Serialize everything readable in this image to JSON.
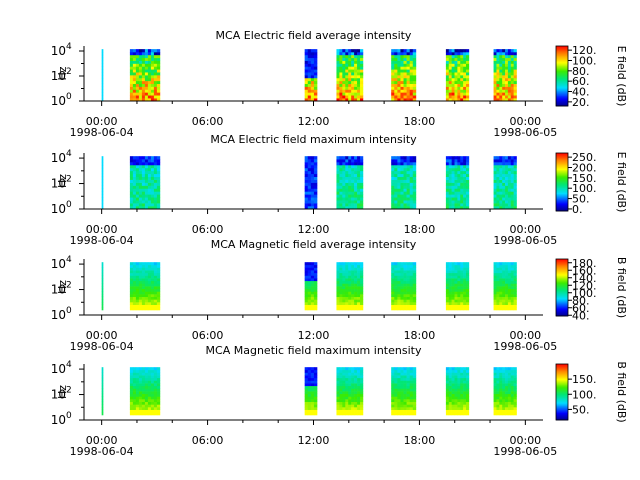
{
  "chart_data": [
    {
      "type": "heatmap",
      "title": "MCA  Electric field average intensity",
      "ylabel": "Hz",
      "colorbar_label": "E field (dB)",
      "colorbar_range": [
        12,
        128
      ],
      "colorbar_ticks": [
        120,
        100,
        80,
        60,
        40,
        20
      ],
      "colorbar_tick_labels": [
        "120.",
        "100.",
        "80.",
        "60.",
        "40.",
        "20."
      ],
      "x_tick_labels": [
        "00:00",
        "06:00",
        "12:00",
        "18:00",
        "00:00"
      ],
      "x_date_labels": [
        "1998-06-04",
        "1998-06-05"
      ],
      "y_exponents": [
        "0",
        "2",
        "4"
      ],
      "y_range_log10": [
        0,
        4.4
      ],
      "x_range_hours": [
        -1,
        25
      ],
      "segments_hours": [
        [
          0,
          0.08
        ],
        [
          1.6,
          3.3
        ],
        [
          11.5,
          12.2
        ],
        [
          13.3,
          14.8
        ],
        [
          16.4,
          17.8
        ],
        [
          19.5,
          20.8
        ],
        [
          22.2,
          23.5
        ]
      ],
      "palette": "rainbow"
    },
    {
      "type": "heatmap",
      "title": "MCA  Electric field maximum intensity",
      "ylabel": "Hz",
      "colorbar_label": "E field (dB)",
      "colorbar_range": [
        -10,
        270
      ],
      "colorbar_ticks": [
        250,
        200,
        150,
        100,
        50,
        0
      ],
      "colorbar_tick_labels": [
        "250.",
        "200.",
        "150.",
        "100.",
        "50.",
        "0."
      ],
      "x_tick_labels": [
        "00:00",
        "06:00",
        "12:00",
        "18:00",
        "00:00"
      ],
      "x_date_labels": [
        "1998-06-04",
        "1998-06-05"
      ],
      "y_exponents": [
        "0",
        "2",
        "4"
      ],
      "y_range_log10": [
        0,
        4.4
      ],
      "x_range_hours": [
        -1,
        25
      ],
      "segments_hours": [
        [
          0,
          0.08
        ],
        [
          1.6,
          3.3
        ],
        [
          11.5,
          12.2
        ],
        [
          13.3,
          14.8
        ],
        [
          16.4,
          17.8
        ],
        [
          19.5,
          20.8
        ],
        [
          22.2,
          23.5
        ]
      ],
      "palette": "rainbow"
    },
    {
      "type": "heatmap",
      "title": "MCA  Magnetic field average intensity",
      "ylabel": "Hz",
      "colorbar_label": "B field (dB)",
      "colorbar_range": [
        38,
        190
      ],
      "colorbar_ticks": [
        180,
        160,
        140,
        120,
        100,
        80,
        60,
        40
      ],
      "colorbar_tick_labels": [
        "180.",
        "160.",
        "140.",
        "120.",
        "100.",
        "80.",
        "60.",
        "40."
      ],
      "x_tick_labels": [
        "00:00",
        "06:00",
        "12:00",
        "18:00",
        "00:00"
      ],
      "x_date_labels": [
        "1998-06-04",
        "1998-06-05"
      ],
      "y_exponents": [
        "0",
        "2",
        "4"
      ],
      "y_range_log10": [
        0,
        4.4
      ],
      "x_range_hours": [
        -1,
        25
      ],
      "segments_hours": [
        [
          0,
          0.08
        ],
        [
          1.6,
          3.3
        ],
        [
          11.5,
          12.2
        ],
        [
          13.3,
          14.8
        ],
        [
          16.4,
          17.8
        ],
        [
          19.5,
          20.8
        ],
        [
          22.2,
          23.5
        ]
      ],
      "palette": "rainbow"
    },
    {
      "type": "heatmap",
      "title": "MCA  Magnetic field maximum intensity",
      "ylabel": "Hz",
      "colorbar_label": "B field (dB)",
      "colorbar_range": [
        15,
        200
      ],
      "colorbar_ticks": [
        150,
        100,
        50
      ],
      "colorbar_tick_labels": [
        "150.",
        "100.",
        "50."
      ],
      "x_tick_labels": [
        "00:00",
        "06:00",
        "12:00",
        "18:00",
        "00:00"
      ],
      "x_date_labels": [
        "1998-06-04",
        "1998-06-05"
      ],
      "y_exponents": [
        "0",
        "2",
        "4"
      ],
      "y_range_log10": [
        0,
        4.4
      ],
      "x_range_hours": [
        -1,
        25
      ],
      "segments_hours": [
        [
          0,
          0.08
        ],
        [
          1.6,
          3.3
        ],
        [
          11.5,
          12.2
        ],
        [
          13.3,
          14.8
        ],
        [
          16.4,
          17.8
        ],
        [
          19.5,
          20.8
        ],
        [
          22.2,
          23.5
        ]
      ],
      "palette": "rainbow"
    }
  ]
}
